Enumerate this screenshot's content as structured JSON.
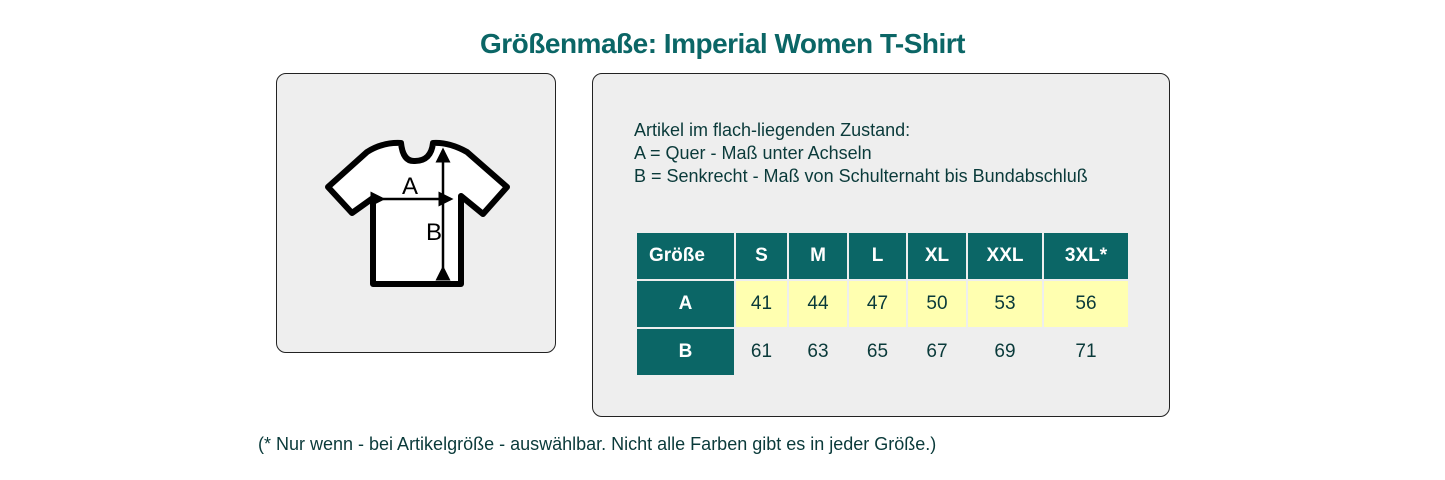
{
  "title": "Größenmaße: Imperial Women T-Shirt",
  "diagram": {
    "label_a": "A",
    "label_b": "B"
  },
  "description": [
    "Artikel im flach-liegenden Zustand:",
    "A = Quer - Maß unter Achseln",
    "B = Senkrecht - Maß von Schulternaht bis Bundabschluß"
  ],
  "table": {
    "header": [
      "Größe",
      "S",
      "M",
      "L",
      "XL",
      "XXL",
      "3XL*"
    ],
    "rows": [
      {
        "label": "A",
        "values": [
          "41",
          "44",
          "47",
          "50",
          "53",
          "56"
        ]
      },
      {
        "label": "B",
        "values": [
          "61",
          "63",
          "65",
          "67",
          "69",
          "71"
        ]
      }
    ]
  },
  "footnote": "(* Nur wenn - bei Artikelgröße - auswählbar. Nicht alle Farben gibt es in jeder Größe.)",
  "colors": {
    "accent": "#0b6666",
    "highlight": "#ffffb0",
    "panel": "#eeeeee"
  }
}
